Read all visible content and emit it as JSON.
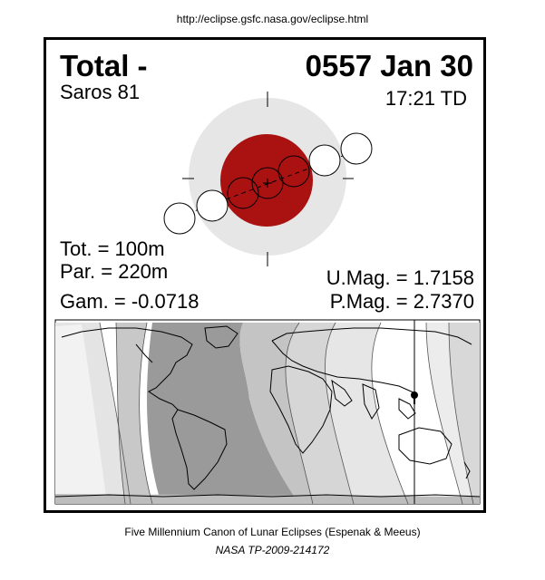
{
  "header": {
    "url": "http://eclipse.gsfc.nasa.gov/eclipse.html"
  },
  "eclipse": {
    "type": "Total  -",
    "date": "0557 Jan 30",
    "saros": "Saros  81",
    "time": "17:21 TD",
    "tot": "Tot. = 100m",
    "par": "Par. = 220m",
    "gam": "Gam. = -0.0718",
    "umag": "U.Mag. = 1.7158",
    "pmag": "P.Mag. = 2.7370"
  },
  "colors": {
    "umbra": "#aa1111",
    "penumbra": "#e6e6e6"
  },
  "footer": {
    "line1": "Five Millennium Canon of Lunar Eclipses (Espenak & Meeus)",
    "line2": "NASA TP-2009-214172"
  }
}
